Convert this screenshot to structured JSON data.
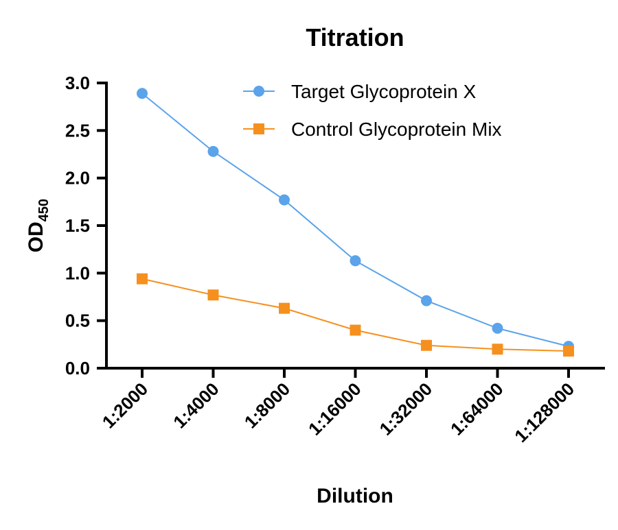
{
  "chart_data": {
    "type": "line",
    "title": "Titration",
    "xlabel": "Dilution",
    "ylabel": "OD",
    "ylabel_subscript": "450",
    "categories": [
      "1:2000",
      "1:4000",
      "1:8000",
      "1:16000",
      "1:32000",
      "1:64000",
      "1:128000"
    ],
    "ylim": [
      0,
      3.0
    ],
    "yticks": [
      "0.0",
      "0.5",
      "1.0",
      "1.5",
      "2.0",
      "2.5",
      "3.0"
    ],
    "grid": false,
    "legend_position": "top-right",
    "series": [
      {
        "name": "Target Glycoprotein X",
        "marker": "circle",
        "color": "#5ba3ea",
        "values": [
          2.89,
          2.28,
          1.77,
          1.13,
          0.71,
          0.42,
          0.23
        ]
      },
      {
        "name": "Control Glycoprotein Mix",
        "marker": "square",
        "color": "#f5901e",
        "values": [
          0.94,
          0.77,
          0.63,
          0.4,
          0.24,
          0.2,
          0.18
        ]
      }
    ]
  }
}
